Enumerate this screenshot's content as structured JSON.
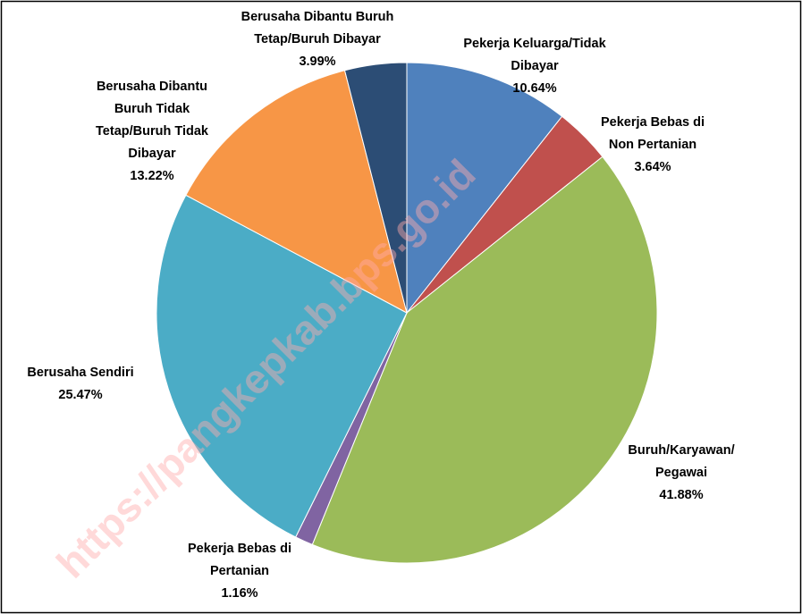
{
  "chart_data": {
    "type": "pie",
    "categories": [
      "Pekerja Keluarga/Tidak\nDibayar",
      "Pekerja Bebas di\nNon Pertanian",
      "Buruh/Karyawan/\nPegawai",
      "Pekerja Bebas di\nPertanian",
      "Berusaha Sendiri",
      "Berusaha Dibantu\nBuruh Tidak\nTetap/Buruh Tidak\nDibayar",
      "Berusaha Dibantu Buruh\nTetap/Buruh Dibayar"
    ],
    "values": [
      10.64,
      3.64,
      41.88,
      1.16,
      25.47,
      13.22,
      3.99
    ],
    "value_labels": [
      "10.64%",
      "3.64%",
      "41.88%",
      "1.16%",
      "25.47%",
      "13.22%",
      "3.99%"
    ],
    "colors": [
      "#4f81bd",
      "#c0504d",
      "#9bbb59",
      "#8064a2",
      "#4bacc6",
      "#f79646",
      "#2c4d75"
    ],
    "watermark": "https://pangkepkab.bps.go.id"
  }
}
